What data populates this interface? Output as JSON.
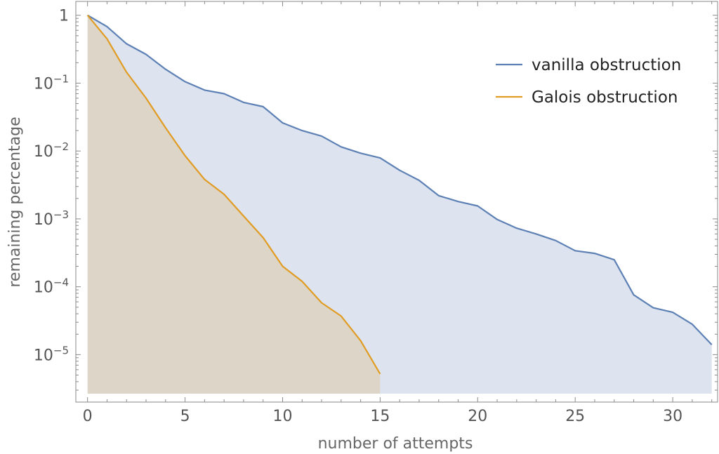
{
  "chart_data": {
    "type": "area",
    "xlabel": "number of attempts",
    "ylabel": "remaining percentage",
    "xlim": [
      -0.6,
      32.3
    ],
    "ylim": [
      2e-06,
      1.6
    ],
    "log_y": true,
    "grid": false,
    "legend_position": "top-right",
    "x_ticks": [
      0,
      5,
      10,
      15,
      20,
      25,
      30
    ],
    "x_tick_labels": [
      "0",
      "5",
      "10",
      "15",
      "20",
      "25",
      "30"
    ],
    "y_ticks": [
      1,
      0.1,
      0.01,
      0.001,
      0.0001,
      1e-05
    ],
    "y_tick_labels": [
      {
        "base": "1",
        "exp": ""
      },
      {
        "base": "10",
        "exp": "−1"
      },
      {
        "base": "10",
        "exp": "−2"
      },
      {
        "base": "10",
        "exp": "−3"
      },
      {
        "base": "10",
        "exp": "−4"
      },
      {
        "base": "10",
        "exp": "−5"
      }
    ],
    "series": [
      {
        "name": "vanilla obstruction",
        "color": "#5e81b5",
        "fill": "#dde4f0",
        "x": [
          0,
          1,
          2,
          3,
          4,
          5,
          6,
          7,
          8,
          9,
          10,
          11,
          12,
          13,
          14,
          15,
          16,
          17,
          18,
          19,
          20,
          21,
          22,
          23,
          24,
          25,
          26,
          27,
          28,
          29,
          30,
          31,
          32
        ],
        "values": [
          1,
          0.68,
          0.38,
          0.265,
          0.16,
          0.105,
          0.079,
          0.07,
          0.052,
          0.045,
          0.026,
          0.02,
          0.0166,
          0.0115,
          0.0093,
          0.0079,
          0.0052,
          0.0037,
          0.0022,
          0.0018,
          0.00155,
          0.00098,
          0.00073,
          0.0006,
          0.00048,
          0.00034,
          0.00031,
          0.00025,
          7.6e-05,
          4.9e-05,
          4.2e-05,
          2.8e-05,
          1.4e-05
        ]
      },
      {
        "name": "Galois obstruction",
        "color": "#e19c24",
        "fill": "#ddd6c8",
        "x": [
          0,
          1,
          2,
          3,
          4,
          5,
          6,
          7,
          8,
          9,
          10,
          11,
          12,
          13,
          14,
          15
        ],
        "values": [
          1,
          0.45,
          0.145,
          0.06,
          0.022,
          0.0085,
          0.0038,
          0.0023,
          0.0011,
          0.00053,
          0.0002,
          0.00012,
          5.8e-05,
          3.7e-05,
          1.6e-05,
          5.2e-06
        ]
      }
    ]
  }
}
